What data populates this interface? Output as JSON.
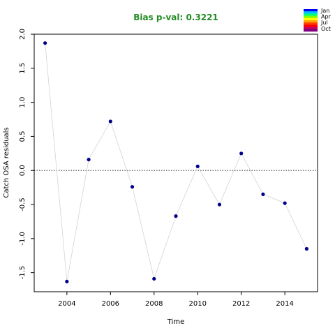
{
  "chart_data": {
    "type": "scatter",
    "title": "Bias p-val: 0.3221",
    "title_color": "#228b22",
    "xlabel": "Time",
    "ylabel": "Catch OSA residuals",
    "xlim": [
      2002.5,
      2015.5
    ],
    "ylim": [
      -1.78,
      2.0
    ],
    "x_ticks": [
      2004,
      2006,
      2008,
      2010,
      2012,
      2014
    ],
    "x_tick_labels": [
      "2004",
      "2006",
      "2008",
      "2010",
      "2012",
      "2014"
    ],
    "y_ticks": [
      -1.5,
      -1.0,
      -0.5,
      0.0,
      0.5,
      1.0,
      1.5,
      2.0
    ],
    "y_tick_labels": [
      "-1.5",
      "-1.0",
      "-0.5",
      "0.0",
      "0.5",
      "1.0",
      "1.5",
      "2.0"
    ],
    "reference_line": 0.0,
    "connecting_line_color": "#d3d3d3",
    "point_color": "#00008b",
    "series": [
      {
        "x": [
          2003,
          2004,
          2005,
          2006,
          2007,
          2008,
          2009,
          2010,
          2011,
          2012,
          2013,
          2014,
          2015
        ],
        "y": [
          1.87,
          -1.63,
          0.16,
          0.72,
          -0.24,
          -1.59,
          -0.67,
          0.06,
          -0.5,
          0.25,
          -0.35,
          -0.48,
          -1.15
        ]
      }
    ],
    "legend": {
      "placement": "top-right",
      "labels": [
        "Jan",
        "Apr",
        "Jul",
        "Oct"
      ],
      "colors": [
        "#0000ff",
        "#00c0ff",
        "#00ff80",
        "#80ff00",
        "#ffff00",
        "#ffa500",
        "#ff4000",
        "#ff0000",
        "#c00060",
        "#800080"
      ]
    }
  }
}
